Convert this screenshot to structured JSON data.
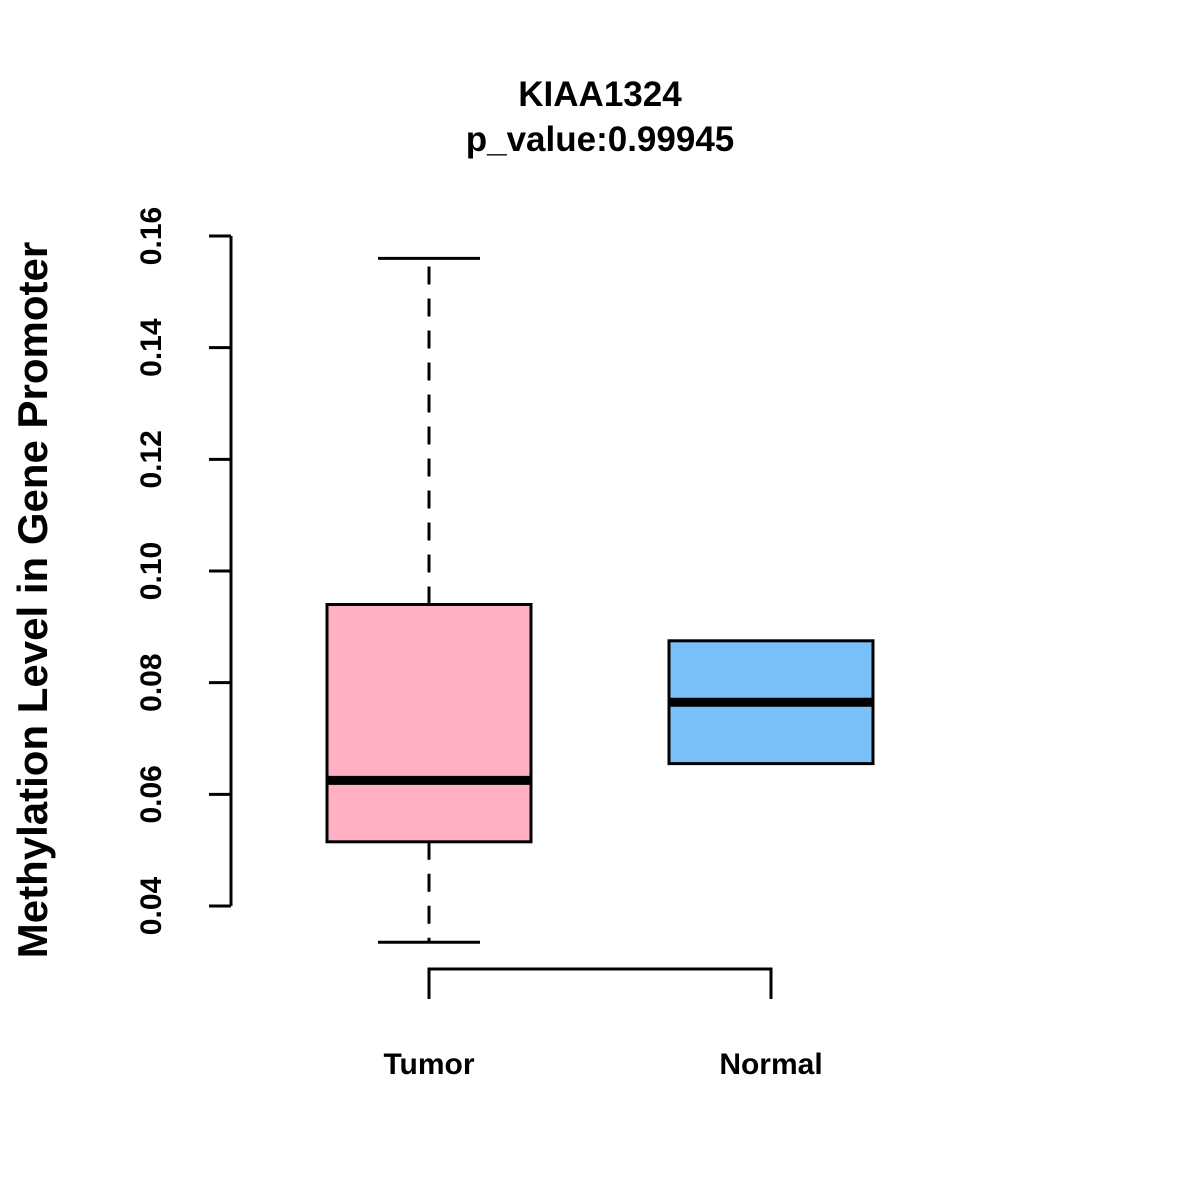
{
  "chart_data": {
    "type": "boxplot",
    "title": "KIAA1324",
    "subtitle": "p_value:0.99945",
    "xlabel": "",
    "ylabel": "Methylation Level in Gene Promoter",
    "ylim": [
      0.04,
      0.16
    ],
    "yticks": [
      0.04,
      0.06,
      0.08,
      0.1,
      0.12,
      0.14,
      0.16
    ],
    "ytick_labels": [
      "0.04",
      "0.06",
      "0.08",
      "0.10",
      "0.12",
      "0.14",
      "0.16"
    ],
    "categories": [
      "Tumor",
      "Normal"
    ],
    "series": [
      {
        "name": "Tumor",
        "min": 0.0335,
        "q1": 0.0515,
        "median": 0.0625,
        "q3": 0.094,
        "max": 0.156,
        "color": "#FFB0C3"
      },
      {
        "name": "Normal",
        "min": 0.0655,
        "q1": 0.0655,
        "median": 0.0765,
        "q3": 0.0875,
        "max": 0.0875,
        "color": "#79C1F8"
      }
    ],
    "grid": false,
    "legend": "none"
  }
}
